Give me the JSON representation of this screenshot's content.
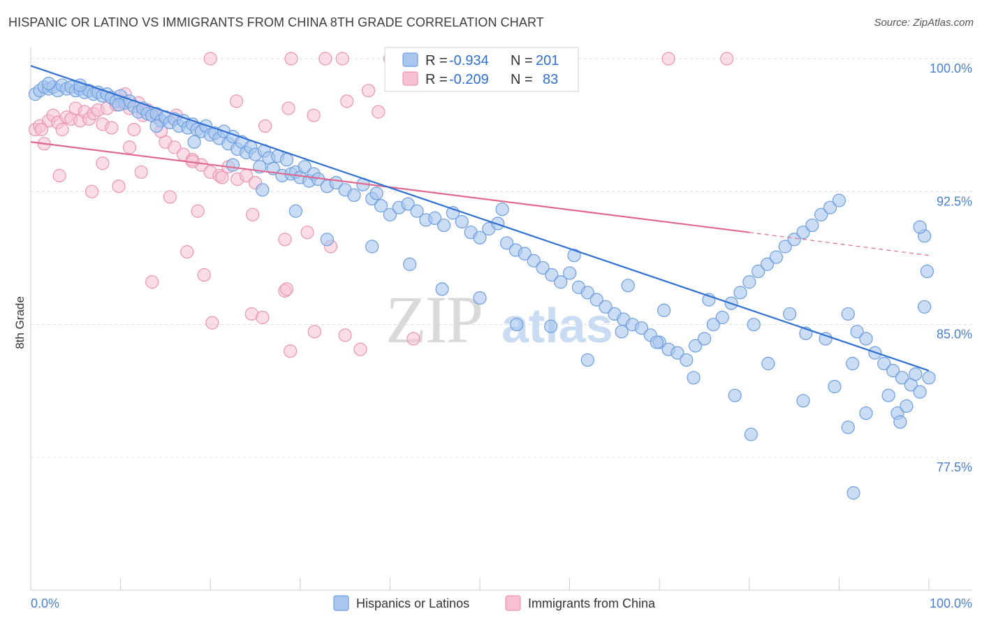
{
  "header": {
    "title": "HISPANIC OR LATINO VS IMMIGRANTS FROM CHINA 8TH GRADE CORRELATION CHART",
    "source": "Source: ZipAtlas.com"
  },
  "watermark": {
    "zip": "ZIP",
    "atlas": "atlas"
  },
  "colors": {
    "blue_fill": "#a9c6ee",
    "blue_stroke": "#6c9de0",
    "blue_line": "#2f6fd2",
    "pink_fill": "#f7c1d3",
    "pink_stroke": "#ec93b2",
    "pink_line": "#e0688f",
    "value_text": "#2f6fd2",
    "grid": "#dddddd"
  },
  "legend_stats": {
    "r_label": "R =",
    "n_label": "N =",
    "series1": {
      "r": "-0.934",
      "n": "201"
    },
    "series2": {
      "r": "-0.209",
      "n": "83"
    }
  },
  "chart_data": {
    "type": "scatter",
    "xlabel": "",
    "ylabel": "8th Grade",
    "xlim": [
      0,
      100
    ],
    "ylim": [
      72,
      100.5
    ],
    "x_tick_labels": [
      "0.0%",
      "100.0%"
    ],
    "y_ticks": [
      77.5,
      85.0,
      92.5,
      100.0
    ],
    "y_tick_labels": [
      "77.5%",
      "85.0%",
      "92.5%",
      "100.0%"
    ],
    "grid": true,
    "legend_position": "bottom",
    "series": [
      {
        "name": "Hispanics or Latinos",
        "trend": {
          "x": [
            0,
            100
          ],
          "y": [
            99.6,
            82.4
          ]
        },
        "points": [
          [
            0.5,
            98.0
          ],
          [
            1,
            98.2
          ],
          [
            1.5,
            98.4
          ],
          [
            2,
            98.3
          ],
          [
            2.5,
            98.4
          ],
          [
            3,
            98.2
          ],
          [
            3.5,
            98.5
          ],
          [
            4,
            98.3
          ],
          [
            4.5,
            98.4
          ],
          [
            5,
            98.2
          ],
          [
            5.5,
            98.3
          ],
          [
            6,
            98.1
          ],
          [
            6.5,
            98.2
          ],
          [
            7,
            98.0
          ],
          [
            7.5,
            98.1
          ],
          [
            8,
            97.9
          ],
          [
            8.5,
            98.0
          ],
          [
            9,
            97.8
          ],
          [
            9.5,
            97.6
          ],
          [
            10,
            97.9
          ],
          [
            10.5,
            97.5
          ],
          [
            11,
            97.6
          ],
          [
            11.5,
            97.3
          ],
          [
            12,
            97.0
          ],
          [
            12.5,
            97.2
          ],
          [
            13,
            96.9
          ],
          [
            13.5,
            96.8
          ],
          [
            14,
            96.9
          ],
          [
            14.5,
            96.5
          ],
          [
            15,
            96.7
          ],
          [
            15.5,
            96.4
          ],
          [
            16,
            96.6
          ],
          [
            16.5,
            96.2
          ],
          [
            17,
            96.5
          ],
          [
            17.5,
            96.1
          ],
          [
            18,
            96.3
          ],
          [
            18.5,
            96.0
          ],
          [
            19,
            95.9
          ],
          [
            19.5,
            96.2
          ],
          [
            20,
            95.7
          ],
          [
            20.5,
            95.8
          ],
          [
            21,
            95.5
          ],
          [
            21.5,
            95.9
          ],
          [
            22,
            95.2
          ],
          [
            22.5,
            95.6
          ],
          [
            23,
            94.9
          ],
          [
            23.5,
            95.3
          ],
          [
            24,
            94.7
          ],
          [
            24.5,
            95.0
          ],
          [
            25,
            94.6
          ],
          [
            25.5,
            93.9
          ],
          [
            26,
            94.8
          ],
          [
            26.5,
            94.4
          ],
          [
            27,
            93.8
          ],
          [
            27.5,
            94.5
          ],
          [
            28,
            93.4
          ],
          [
            28.5,
            94.3
          ],
          [
            29,
            93.5
          ],
          [
            29.5,
            93.6
          ],
          [
            30,
            93.3
          ],
          [
            30.5,
            93.9
          ],
          [
            31,
            93.1
          ],
          [
            31.5,
            93.5
          ],
          [
            32,
            93.2
          ],
          [
            33,
            92.8
          ],
          [
            34,
            93.0
          ],
          [
            35,
            92.6
          ],
          [
            36,
            92.3
          ],
          [
            37,
            92.9
          ],
          [
            38,
            92.1
          ],
          [
            39,
            91.7
          ],
          [
            40,
            91.2
          ],
          [
            41,
            91.6
          ],
          [
            42,
            91.8
          ],
          [
            43,
            91.4
          ],
          [
            44,
            90.9
          ],
          [
            45,
            91.0
          ],
          [
            46,
            90.6
          ],
          [
            47,
            91.3
          ],
          [
            48,
            90.8
          ],
          [
            49,
            90.2
          ],
          [
            50,
            89.9
          ],
          [
            51,
            90.4
          ],
          [
            52,
            90.7
          ],
          [
            53,
            89.6
          ],
          [
            54,
            89.2
          ],
          [
            55,
            89.0
          ],
          [
            56,
            88.6
          ],
          [
            57,
            88.2
          ],
          [
            58,
            87.8
          ],
          [
            59,
            87.4
          ],
          [
            60,
            87.9
          ],
          [
            61,
            87.1
          ],
          [
            62,
            86.8
          ],
          [
            63,
            86.4
          ],
          [
            64,
            86.0
          ],
          [
            65,
            85.6
          ],
          [
            66,
            85.3
          ],
          [
            67,
            85.0
          ],
          [
            68,
            84.8
          ],
          [
            69,
            84.4
          ],
          [
            70,
            84.0
          ],
          [
            71,
            83.6
          ],
          [
            72,
            83.4
          ],
          [
            73,
            83.0
          ],
          [
            74,
            83.8
          ],
          [
            75,
            84.2
          ],
          [
            76,
            85.0
          ],
          [
            77,
            85.4
          ],
          [
            78,
            86.2
          ],
          [
            79,
            86.8
          ],
          [
            80,
            87.4
          ],
          [
            81,
            88.0
          ],
          [
            82,
            88.4
          ],
          [
            83,
            88.8
          ],
          [
            84,
            89.4
          ],
          [
            85,
            89.8
          ],
          [
            86,
            90.2
          ],
          [
            87,
            90.6
          ],
          [
            88,
            91.2
          ],
          [
            89,
            91.6
          ],
          [
            90,
            92.0
          ],
          [
            91,
            85.6
          ],
          [
            92,
            84.6
          ],
          [
            93,
            84.2
          ],
          [
            94,
            83.4
          ],
          [
            95,
            82.8
          ],
          [
            96,
            82.4
          ],
          [
            97,
            82.0
          ],
          [
            98,
            81.6
          ],
          [
            99,
            81.2
          ],
          [
            100,
            82.0
          ],
          [
            38.5,
            92.4
          ],
          [
            52.5,
            91.5
          ],
          [
            60.5,
            88.9
          ],
          [
            66.5,
            87.2
          ],
          [
            70.5,
            85.8
          ],
          [
            75.5,
            86.4
          ],
          [
            80.5,
            85.0
          ],
          [
            84.5,
            85.6
          ],
          [
            88.5,
            84.2
          ],
          [
            91.5,
            82.8
          ],
          [
            95.5,
            81.0
          ],
          [
            96.5,
            80.0
          ],
          [
            97.5,
            80.4
          ],
          [
            98.5,
            82.2
          ],
          [
            99.5,
            86.0
          ],
          [
            99.8,
            88.0
          ],
          [
            99.5,
            90.0
          ],
          [
            99.0,
            90.5
          ],
          [
            96.8,
            79.5
          ],
          [
            91.0,
            79.2
          ],
          [
            91.6,
            75.5
          ],
          [
            78.4,
            81.0
          ],
          [
            80.2,
            78.8
          ],
          [
            86.0,
            80.7
          ],
          [
            89.5,
            81.5
          ],
          [
            93.0,
            80.0
          ],
          [
            86.3,
            84.5
          ],
          [
            82.1,
            82.8
          ],
          [
            73.8,
            82.0
          ],
          [
            69.7,
            84.0
          ],
          [
            65.8,
            84.6
          ],
          [
            62.0,
            83.0
          ],
          [
            57.9,
            84.9
          ],
          [
            54.1,
            85.0
          ],
          [
            50.0,
            86.5
          ],
          [
            45.8,
            87.0
          ],
          [
            42.2,
            88.4
          ],
          [
            38.0,
            89.4
          ],
          [
            33.0,
            89.8
          ],
          [
            29.5,
            91.4
          ],
          [
            25.8,
            92.6
          ],
          [
            22.5,
            94.0
          ],
          [
            18.2,
            95.3
          ],
          [
            14.0,
            96.2
          ],
          [
            9.8,
            97.4
          ],
          [
            5.5,
            98.5
          ],
          [
            2.0,
            98.6
          ]
        ]
      },
      {
        "name": "Immigrants from China",
        "trend": {
          "x": [
            0,
            80
          ],
          "y": [
            95.3,
            90.2
          ]
        },
        "trend_dashed": {
          "x": [
            80,
            100
          ],
          "y": [
            90.2,
            88.9
          ]
        },
        "points": [
          [
            0.5,
            96.0
          ],
          [
            1,
            96.2
          ],
          [
            1.5,
            95.2
          ],
          [
            2,
            96.5
          ],
          [
            2.5,
            96.8
          ],
          [
            3,
            96.4
          ],
          [
            3.5,
            96.0
          ],
          [
            4,
            96.7
          ],
          [
            4.5,
            96.6
          ],
          [
            5,
            97.2
          ],
          [
            5.5,
            96.5
          ],
          [
            6,
            97.0
          ],
          [
            6.5,
            96.6
          ],
          [
            7,
            96.9
          ],
          [
            7.5,
            97.1
          ],
          [
            8,
            96.3
          ],
          [
            8.5,
            97.2
          ],
          [
            9,
            96.1
          ],
          [
            9.5,
            97.4
          ],
          [
            10,
            97.6
          ],
          [
            10.5,
            98.0
          ],
          [
            11,
            97.2
          ],
          [
            11.5,
            96.0
          ],
          [
            12,
            97.5
          ],
          [
            12.5,
            96.8
          ],
          [
            13,
            97.1
          ],
          [
            14,
            96.7
          ],
          [
            15,
            95.3
          ],
          [
            16,
            95.0
          ],
          [
            17,
            94.6
          ],
          [
            18,
            94.3
          ],
          [
            19,
            94.0
          ],
          [
            20,
            93.6
          ],
          [
            21,
            93.4
          ],
          [
            22,
            93.9
          ],
          [
            23,
            93.2
          ],
          [
            24,
            93.4
          ],
          [
            25,
            93.0
          ],
          [
            3.2,
            93.4
          ],
          [
            6.8,
            92.5
          ],
          [
            9.8,
            92.8
          ],
          [
            12.3,
            93.6
          ],
          [
            15.5,
            92.2
          ],
          [
            18.6,
            91.4
          ],
          [
            21.3,
            93.3
          ],
          [
            24.7,
            91.2
          ],
          [
            28.3,
            89.8
          ],
          [
            30.8,
            90.2
          ],
          [
            33.4,
            89.4
          ],
          [
            22.9,
            97.6
          ],
          [
            26.1,
            96.2
          ],
          [
            28.7,
            97.2
          ],
          [
            31.5,
            96.8
          ],
          [
            35.2,
            97.6
          ],
          [
            37.6,
            98.2
          ],
          [
            20.0,
            100.0
          ],
          [
            29.0,
            100.0
          ],
          [
            32.8,
            100.0
          ],
          [
            34.7,
            100.0
          ],
          [
            40.0,
            100.0
          ],
          [
            71.0,
            100.0
          ],
          [
            77.5,
            100.0
          ],
          [
            13.5,
            87.4
          ],
          [
            17.4,
            89.1
          ],
          [
            19.3,
            87.8
          ],
          [
            20.2,
            85.1
          ],
          [
            24.6,
            85.6
          ],
          [
            25.8,
            85.4
          ],
          [
            28.3,
            86.9
          ],
          [
            28.5,
            87.0
          ],
          [
            31.6,
            84.6
          ],
          [
            35.0,
            84.4
          ],
          [
            42.6,
            84.2
          ],
          [
            28.9,
            83.5
          ],
          [
            36.7,
            83.6
          ],
          [
            38.7,
            97.0
          ],
          [
            18.0,
            94.2
          ],
          [
            16.2,
            96.8
          ],
          [
            14.5,
            95.9
          ],
          [
            11.0,
            95.0
          ],
          [
            8.0,
            94.1
          ],
          [
            1.2,
            96.0
          ]
        ]
      }
    ]
  },
  "bottom_legend": {
    "series1_label": "Hispanics or Latinos",
    "series2_label": "Immigrants from China"
  }
}
